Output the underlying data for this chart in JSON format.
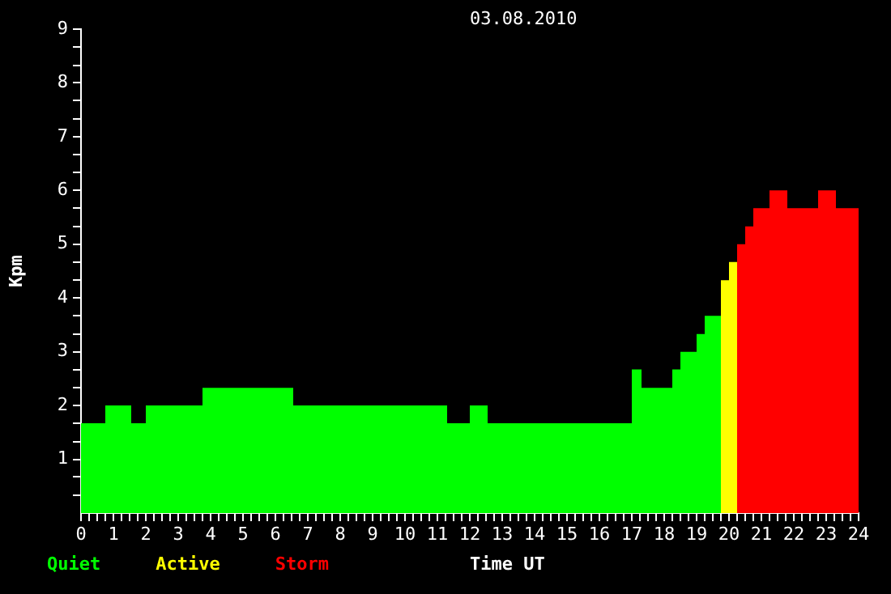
{
  "chart_data": {
    "type": "histogram",
    "title": "03.08.2010",
    "xlabel": "Time UT",
    "ylabel": "Kpm",
    "legend": "bottom left",
    "grid": false,
    "bins": [
      0,
      0.75,
      1.55,
      2.0,
      3.75,
      6.55,
      11.3,
      12.0,
      12.55,
      17.0,
      17.3,
      18.25,
      18.5,
      19.0,
      19.25,
      19.75,
      20.0,
      20.25,
      20.5,
      20.75,
      21.25,
      21.8,
      22.75,
      23.3,
      24
    ],
    "series": [
      {
        "name": "Quiet",
        "color": "#00ff00",
        "values": [
          1.67,
          2.0,
          1.67,
          2.0,
          2.33,
          2.0,
          1.67,
          2.0,
          1.67,
          2.67,
          2.33,
          2.67,
          3.0,
          3.33,
          3.67,
          null,
          null,
          null,
          null,
          null,
          null,
          null,
          null,
          null
        ]
      },
      {
        "name": "Active",
        "color": "#ffff00",
        "values": [
          null,
          null,
          null,
          null,
          null,
          null,
          null,
          null,
          null,
          null,
          null,
          null,
          null,
          null,
          null,
          4.33,
          4.67,
          null,
          null,
          null,
          null,
          null,
          null,
          null
        ]
      },
      {
        "name": "Storm",
        "color": "#ff0000",
        "values": [
          null,
          null,
          null,
          null,
          null,
          null,
          null,
          null,
          null,
          null,
          null,
          null,
          null,
          null,
          null,
          null,
          null,
          5.0,
          5.33,
          5.67,
          6.0,
          5.67,
          6.0,
          5.67
        ]
      }
    ],
    "xlim": [
      0,
      24
    ],
    "ylim": [
      0,
      9
    ],
    "xticks": [
      0,
      {
        "value": 0.25,
        "label": null
      },
      {
        "value": 0.5,
        "label": null
      },
      {
        "value": 0.75,
        "label": null
      },
      1,
      {
        "value": 1.25,
        "label": null
      },
      {
        "value": 1.5,
        "label": null
      },
      {
        "value": 1.75,
        "label": null
      },
      2,
      {
        "value": 2.25,
        "label": null
      },
      {
        "value": 2.5,
        "label": null
      },
      {
        "value": 2.75,
        "label": null
      },
      3,
      {
        "value": 3.25,
        "label": null
      },
      {
        "value": 3.5,
        "label": null
      },
      {
        "value": 3.75,
        "label": null
      },
      4,
      {
        "value": 4.25,
        "label": null
      },
      {
        "value": 4.5,
        "label": null
      },
      {
        "value": 4.75,
        "label": null
      },
      5,
      {
        "value": 5.25,
        "label": null
      },
      {
        "value": 5.5,
        "label": null
      },
      {
        "value": 5.75,
        "label": null
      },
      6,
      {
        "value": 6.25,
        "label": null
      },
      {
        "value": 6.5,
        "label": null
      },
      {
        "value": 6.75,
        "label": null
      },
      7,
      {
        "value": 7.25,
        "label": null
      },
      {
        "value": 7.5,
        "label": null
      },
      {
        "value": 7.75,
        "label": null
      },
      8,
      {
        "value": 8.25,
        "label": null
      },
      {
        "value": 8.5,
        "label": null
      },
      {
        "value": 8.75,
        "label": null
      },
      9,
      {
        "value": 9.25,
        "label": null
      },
      {
        "value": 9.5,
        "label": null
      },
      {
        "value": 9.75,
        "label": null
      },
      10,
      {
        "value": 10.25,
        "label": null
      },
      {
        "value": 10.5,
        "label": null
      },
      {
        "value": 10.75,
        "label": null
      },
      11,
      {
        "value": 11.25,
        "label": null
      },
      {
        "value": 11.5,
        "label": null
      },
      {
        "value": 11.75,
        "label": null
      },
      12,
      {
        "value": 12.25,
        "label": null
      },
      {
        "value": 12.5,
        "label": null
      },
      {
        "value": 12.75,
        "label": null
      },
      13,
      {
        "value": 13.25,
        "label": null
      },
      {
        "value": 13.5,
        "label": null
      },
      {
        "value": 13.75,
        "label": null
      },
      14,
      {
        "value": 14.25,
        "label": null
      },
      {
        "value": 14.5,
        "label": null
      },
      {
        "value": 14.75,
        "label": null
      },
      15,
      {
        "value": 15.25,
        "label": null
      },
      {
        "value": 15.5,
        "label": null
      },
      {
        "value": 15.75,
        "label": null
      },
      16,
      {
        "value": 16.25,
        "label": null
      },
      {
        "value": 16.5,
        "label": null
      },
      {
        "value": 16.75,
        "label": null
      },
      17,
      {
        "value": 17.25,
        "label": null
      },
      {
        "value": 17.5,
        "label": null
      },
      {
        "value": 17.75,
        "label": null
      },
      18,
      {
        "value": 18.25,
        "label": null
      },
      {
        "value": 18.5,
        "label": null
      },
      {
        "value": 18.75,
        "label": null
      },
      19,
      {
        "value": 19.25,
        "label": null
      },
      {
        "value": 19.5,
        "label": null
      },
      {
        "value": 19.75,
        "label": null
      },
      20,
      {
        "value": 20.25,
        "label": null
      },
      {
        "value": 20.5,
        "label": null
      },
      {
        "value": 20.75,
        "label": null
      },
      21,
      {
        "value": 21.25,
        "label": null
      },
      {
        "value": 21.5,
        "label": null
      },
      {
        "value": 21.75,
        "label": null
      },
      22,
      {
        "value": 22.25,
        "label": null
      },
      {
        "value": 22.5,
        "label": null
      },
      {
        "value": 22.75,
        "label": null
      },
      23,
      {
        "value": 23.25,
        "label": null
      },
      {
        "value": 23.5,
        "label": null
      },
      {
        "value": 23.75,
        "label": null
      },
      24
    ],
    "yticks": [
      {
        "value": 0.33,
        "label": null
      },
      {
        "value": 0.67,
        "label": null
      },
      1,
      {
        "value": 1.33,
        "label": null
      },
      {
        "value": 1.67,
        "label": null
      },
      2,
      {
        "value": 2.33,
        "label": null
      },
      {
        "value": 2.67,
        "label": null
      },
      3,
      {
        "value": 3.33,
        "label": null
      },
      {
        "value": 3.67,
        "label": null
      },
      4,
      {
        "value": 4.33,
        "label": null
      },
      {
        "value": 4.67,
        "label": null
      },
      5,
      {
        "value": 5.33,
        "label": null
      },
      {
        "value": 5.67,
        "label": null
      },
      6,
      {
        "value": 6.33,
        "label": null
      },
      {
        "value": 6.67,
        "label": null
      },
      7,
      {
        "value": 7.33,
        "label": null
      },
      {
        "value": 7.67,
        "label": null
      },
      8,
      {
        "value": 8.33,
        "label": null
      },
      {
        "value": 8.67,
        "label": null
      },
      9
    ]
  }
}
